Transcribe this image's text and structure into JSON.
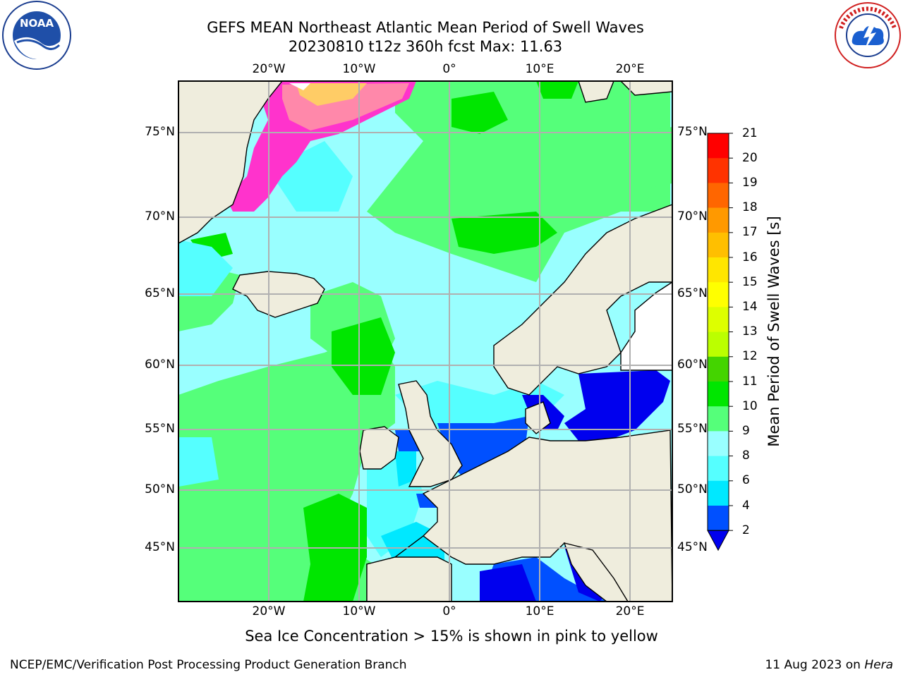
{
  "title": {
    "line1": "GEFS MEAN Northeast Atlantic Mean Period of Swell Waves",
    "line2": "20230810 t12z 360h fcst   Max: 11.63"
  },
  "logos": {
    "noaa_text": "NOAA",
    "noaa_ring": "NATIONAL OCEANIC AND ATMOSPHERIC ADMINISTRATION · U.S. DEPARTMENT OF COMMERCE",
    "nws_ring": "NATIONAL WEATHER SERVICE"
  },
  "map": {
    "lat_labels": [
      "75°N",
      "70°N",
      "65°N",
      "60°N",
      "55°N",
      "50°N",
      "45°N"
    ],
    "lon_labels": [
      "20°W",
      "10°W",
      "0°",
      "10°E",
      "20°E"
    ],
    "colors": {
      "land": "#efeddd",
      "ocean_base": "#99ffff",
      "grid": "#b0b0b0"
    }
  },
  "colorbar": {
    "label": "Mean Period of Swell Waves [s]",
    "ticks": [
      "21",
      "20",
      "19",
      "18",
      "17",
      "16",
      "15",
      "14",
      "13",
      "12",
      "11",
      "10",
      "9",
      "8",
      "6",
      "4",
      "2"
    ],
    "levels": [
      {
        "from": 2,
        "color": "#0050ff"
      },
      {
        "from": 4,
        "color": "#00e8ff"
      },
      {
        "from": 6,
        "color": "#55ffff"
      },
      {
        "from": 8,
        "color": "#99ffff"
      },
      {
        "from": 9,
        "color": "#55ff7a"
      },
      {
        "from": 10,
        "color": "#00e600"
      },
      {
        "from": 11,
        "color": "#44d400"
      },
      {
        "from": 12,
        "color": "#bbff00"
      },
      {
        "from": 13,
        "color": "#ddff00"
      },
      {
        "from": 14,
        "color": "#ffff00"
      },
      {
        "from": 15,
        "color": "#ffe600"
      },
      {
        "from": 16,
        "color": "#ffbf00"
      },
      {
        "from": 17,
        "color": "#ff9900"
      },
      {
        "from": 18,
        "color": "#ff6600"
      },
      {
        "from": 19,
        "color": "#ff3300"
      },
      {
        "from": 20,
        "color": "#ff0000"
      }
    ],
    "under_color": "#0000ee"
  },
  "caption": "Sea Ice Concentration > 15% is shown in pink to yellow",
  "footer": {
    "left": "NCEP/EMC/Verification Post Processing Product Generation Branch",
    "right_date": "11 Aug 2023 on ",
    "right_host": "Hera"
  }
}
